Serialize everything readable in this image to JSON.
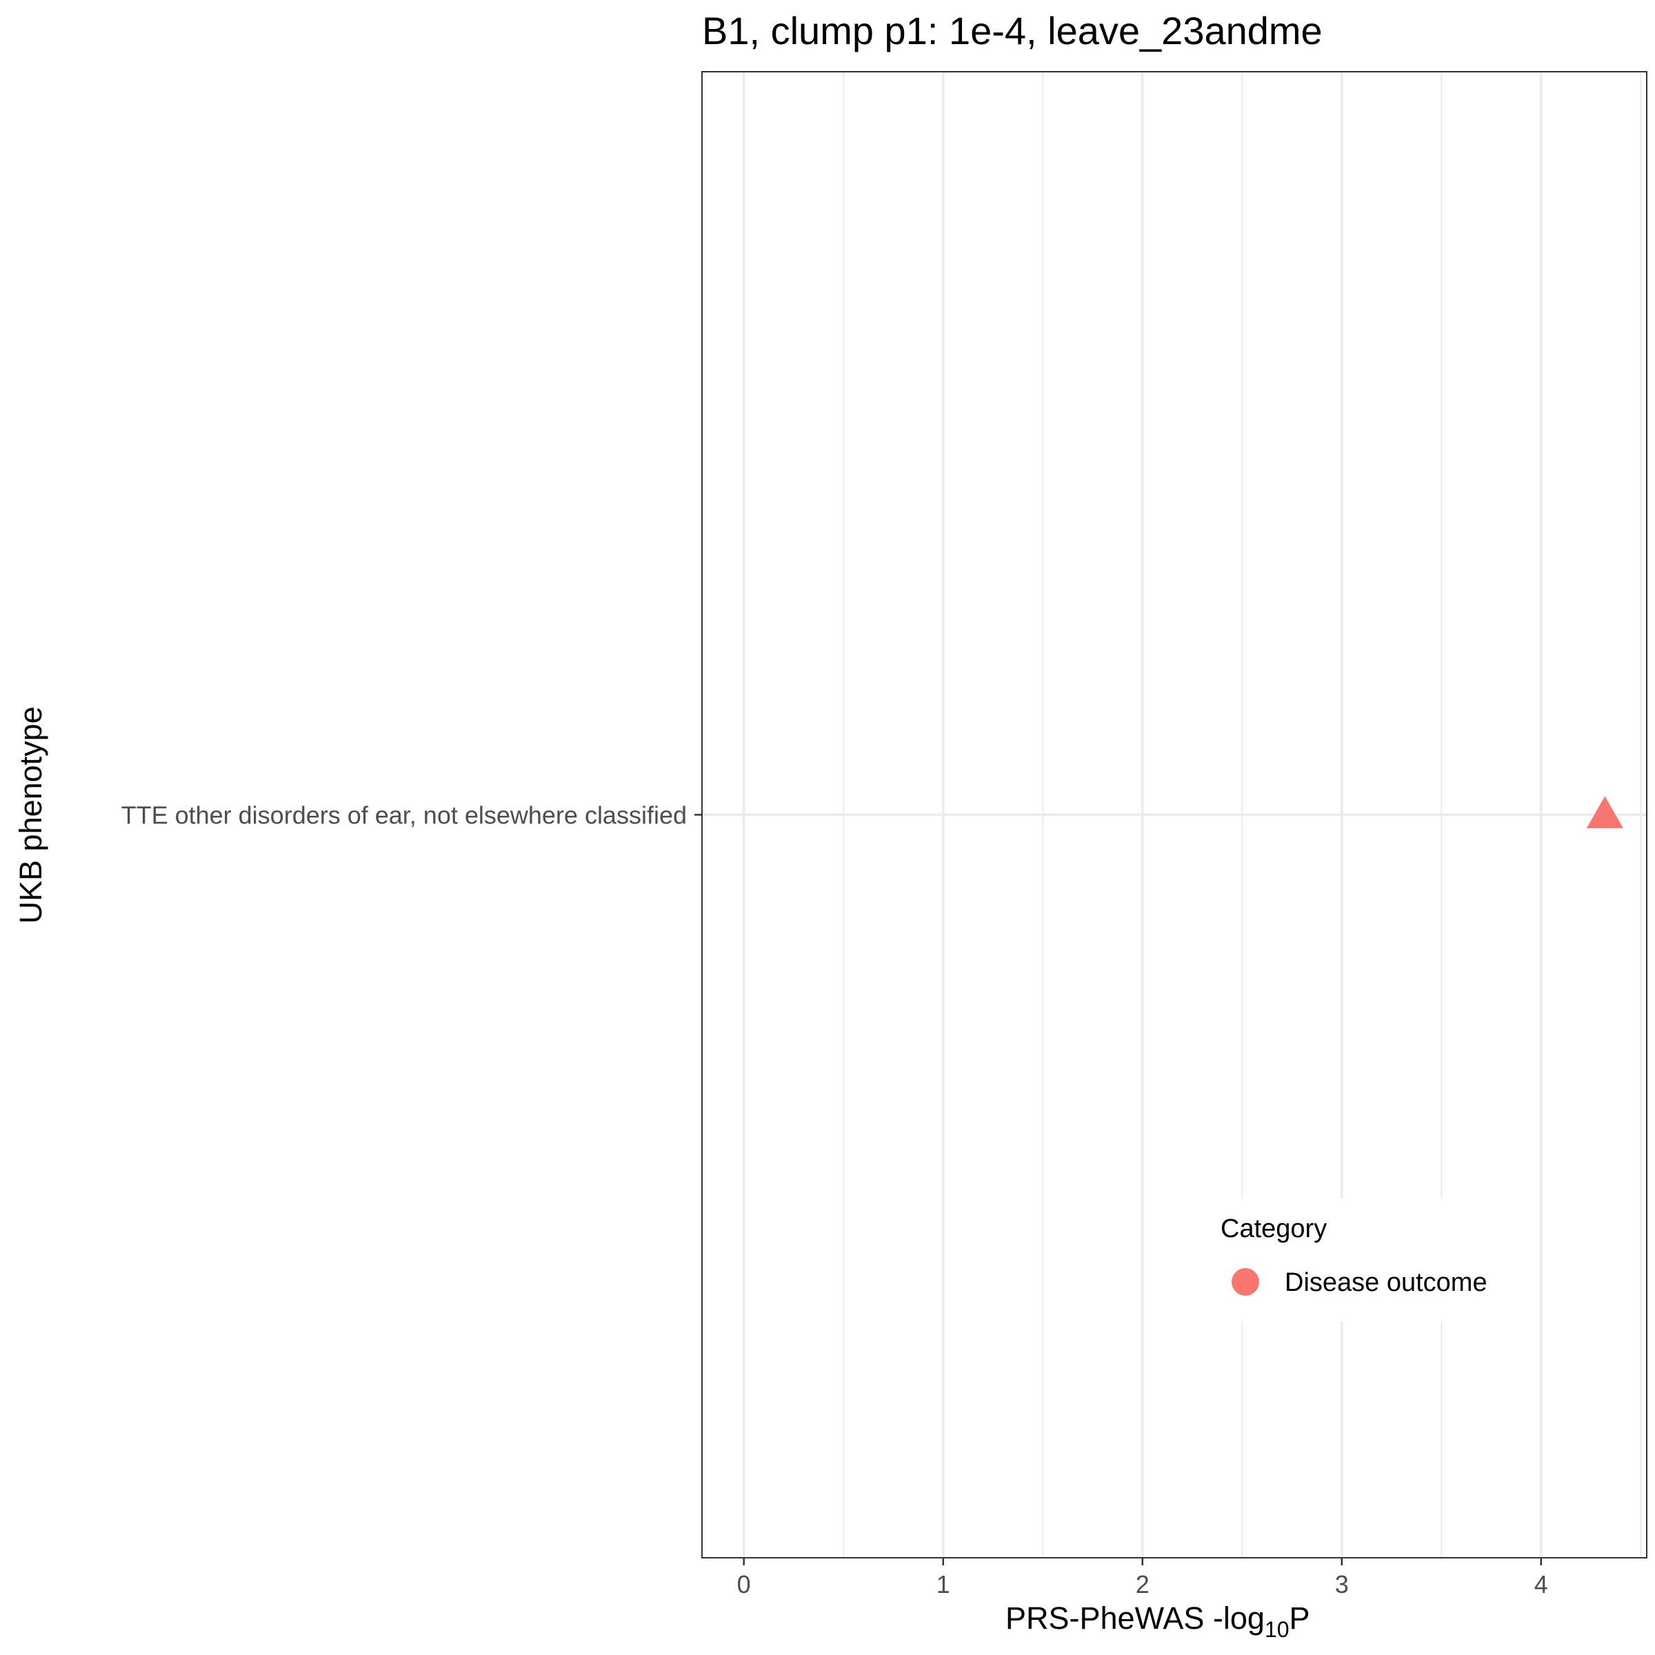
{
  "chart_data": {
    "type": "scatter",
    "title": "B1, clump p1: 1e-4, leave_23andme",
    "xlabel_main": "PRS-PheWAS -log",
    "xlabel_sub": "10",
    "xlabel_tail": "P",
    "ylabel": "UKB phenotype",
    "x_ticks": [
      0,
      1,
      2,
      3,
      4
    ],
    "xlim": [
      -0.21,
      4.53
    ],
    "categories": [
      "TTE other disorders of ear, not elsewhere classified"
    ],
    "points": [
      {
        "phenotype": "TTE other disorders of ear, not elsewhere classified",
        "x": 4.32,
        "shape": "triangle",
        "category": "Disease outcome"
      }
    ],
    "legend": {
      "title": "Category",
      "position": "bottom-right inside",
      "entries": [
        {
          "label": "Disease outcome",
          "color": "#F8766D",
          "shape": "circle"
        }
      ]
    },
    "grid": true,
    "colors": {
      "point": "#F8766D",
      "grid": "#ebebeb",
      "border": "#333333"
    }
  }
}
